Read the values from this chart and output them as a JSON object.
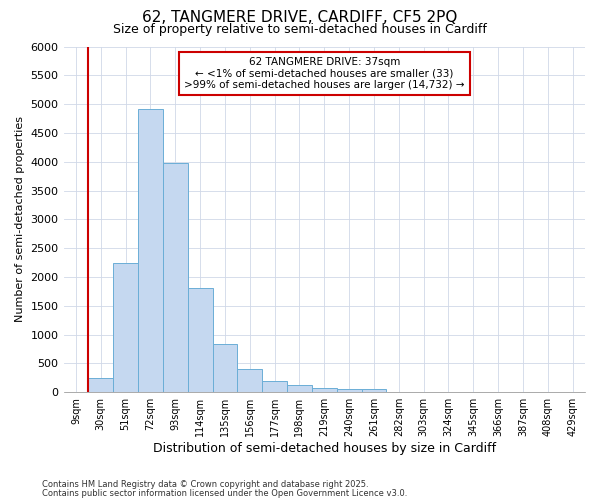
{
  "title_line1": "62, TANGMERE DRIVE, CARDIFF, CF5 2PQ",
  "title_line2": "Size of property relative to semi-detached houses in Cardiff",
  "xlabel": "Distribution of semi-detached houses by size in Cardiff",
  "ylabel": "Number of semi-detached properties",
  "footnote_line1": "Contains HM Land Registry data © Crown copyright and database right 2025.",
  "footnote_line2": "Contains public sector information licensed under the Open Government Licence v3.0.",
  "bar_labels": [
    "9sqm",
    "30sqm",
    "51sqm",
    "72sqm",
    "93sqm",
    "114sqm",
    "135sqm",
    "156sqm",
    "177sqm",
    "198sqm",
    "219sqm",
    "240sqm",
    "261sqm",
    "282sqm",
    "303sqm",
    "324sqm",
    "345sqm",
    "366sqm",
    "387sqm",
    "408sqm",
    "429sqm"
  ],
  "bar_values": [
    5,
    255,
    2250,
    4920,
    3970,
    1800,
    840,
    400,
    200,
    130,
    80,
    60,
    50,
    0,
    0,
    0,
    0,
    0,
    0,
    0,
    0
  ],
  "bar_color": "#c5d8f0",
  "bar_edge_color": "#6baed6",
  "ylim": [
    0,
    6000
  ],
  "yticks": [
    0,
    500,
    1000,
    1500,
    2000,
    2500,
    3000,
    3500,
    4000,
    4500,
    5000,
    5500,
    6000
  ],
  "vline_x_index": 1,
  "vline_color": "#cc0000",
  "annotation_line1": "62 TANGMERE DRIVE: 37sqm",
  "annotation_line2": "← <1% of semi-detached houses are smaller (33)",
  "annotation_line3": ">99% of semi-detached houses are larger (14,732) →",
  "annotation_box_color": "#cc0000",
  "annotation_fill": "#ffffff",
  "background_color": "#ffffff",
  "grid_color": "#d0d8e8"
}
